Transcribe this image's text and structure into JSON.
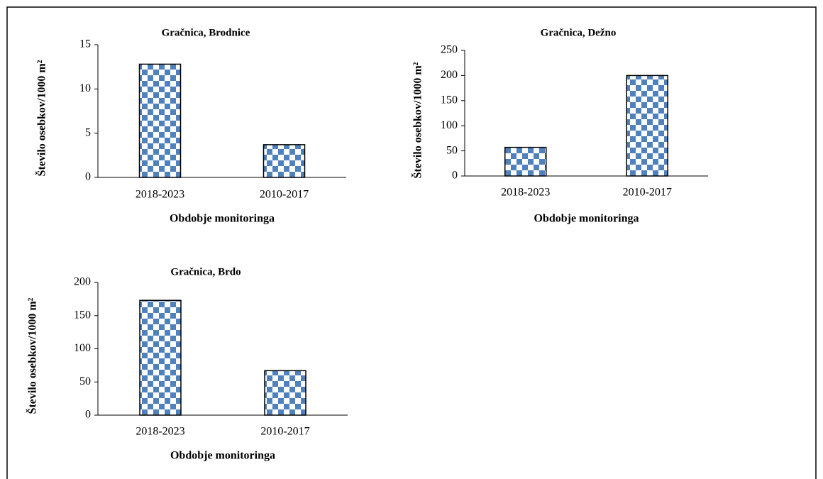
{
  "chart_data": [
    {
      "type": "bar",
      "title": "Gračnica, Brodnice",
      "x_label": "Obdobje monitoringa",
      "y_label": "Število osebkov/1000 m²",
      "categories": [
        "2018-2023",
        "2010-2017"
      ],
      "values": [
        12.8,
        3.7
      ],
      "color": "#4f81bd",
      "ylim": [
        0,
        15
      ],
      "yticks": [
        0,
        5,
        10,
        15
      ]
    },
    {
      "type": "bar",
      "title": "Gračnica, Dežno",
      "x_label": "Obdobje monitoringa",
      "y_label": "Število osebkov/1000 m²",
      "categories": [
        "2018-2023",
        "2010-2017"
      ],
      "values": [
        57,
        200
      ],
      "color": "#4f81bd",
      "ylim": [
        0,
        250
      ],
      "yticks": [
        0,
        50,
        100,
        150,
        200,
        250
      ]
    },
    {
      "type": "bar",
      "title": "Gračnica, Brdo",
      "x_label": "Obdobje monitoringa",
      "y_label": "Število osebkov/1000 m²",
      "categories": [
        "2018-2023",
        "2010-2017"
      ],
      "values": [
        173,
        67
      ],
      "color": "#4f81bd",
      "ylim": [
        0,
        200
      ],
      "yticks": [
        0,
        50,
        100,
        150,
        200
      ]
    }
  ]
}
